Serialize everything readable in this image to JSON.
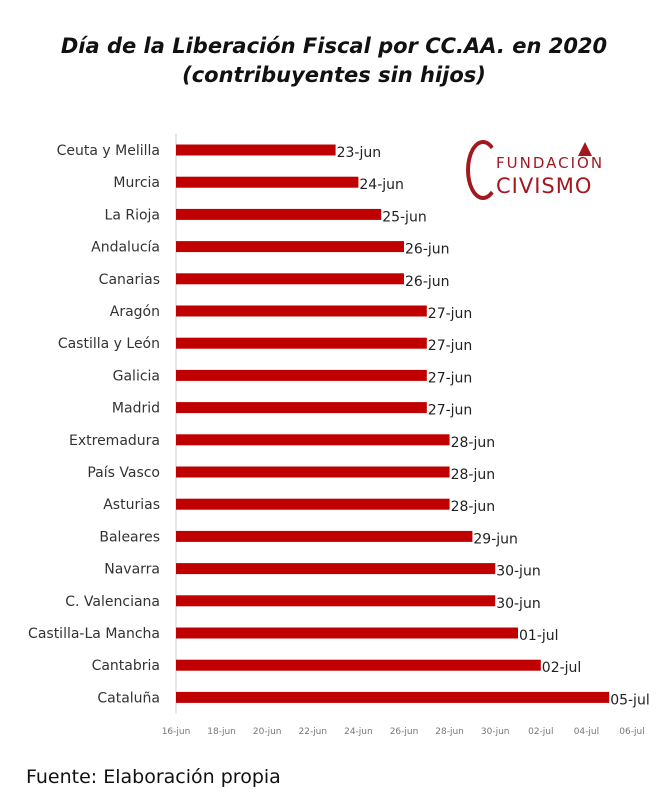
{
  "title": "Día de la Liberación Fiscal por CC.AA. en 2020",
  "subtitle": "(contribuyentes sin hijos)",
  "source": "Fuente: Elaboración propia",
  "logo": {
    "line1": "FUNDACIÓN",
    "line2": "CIVISMO",
    "color": "#a3181f"
  },
  "chart_data": {
    "type": "bar",
    "orientation": "horizontal",
    "categories": [
      "Ceuta y Melilla",
      "Murcia",
      "La Rioja",
      "Andalucía",
      "Canarias",
      "Aragón",
      "Castilla y León",
      "Galicia",
      "Madrid",
      "Extremadura",
      "País Vasco",
      "Asturias",
      "Baleares",
      "Navarra",
      "C. Valenciana",
      "Castilla-La Mancha",
      "Cantabria",
      "Cataluña"
    ],
    "values": [
      "2020-06-23",
      "2020-06-24",
      "2020-06-25",
      "2020-06-26",
      "2020-06-26",
      "2020-06-27",
      "2020-06-27",
      "2020-06-27",
      "2020-06-27",
      "2020-06-28",
      "2020-06-28",
      "2020-06-28",
      "2020-06-29",
      "2020-06-30",
      "2020-06-30",
      "2020-07-01",
      "2020-07-02",
      "2020-07-05"
    ],
    "data_labels": [
      "23-jun",
      "24-jun",
      "25-jun",
      "26-jun",
      "26-jun",
      "27-jun",
      "27-jun",
      "27-jun",
      "27-jun",
      "28-jun",
      "28-jun",
      "28-jun",
      "29-jun",
      "30-jun",
      "30-jun",
      "01-jul",
      "02-jul",
      "05-jul"
    ],
    "xlim": [
      "2020-06-16",
      "2020-07-06"
    ],
    "x_ticks": [
      "2020-06-16",
      "2020-06-18",
      "2020-06-20",
      "2020-06-22",
      "2020-06-24",
      "2020-06-26",
      "2020-06-28",
      "2020-06-30",
      "2020-07-02",
      "2020-07-04",
      "2020-07-06"
    ],
    "x_tick_labels": [
      "16-jun",
      "18-jun",
      "20-jun",
      "22-jun",
      "24-jun",
      "26-jun",
      "28-jun",
      "30-jun",
      "02-jul",
      "04-jul",
      "06-jul"
    ],
    "bar_color": "#c00000",
    "grid": false,
    "legend": "none"
  }
}
